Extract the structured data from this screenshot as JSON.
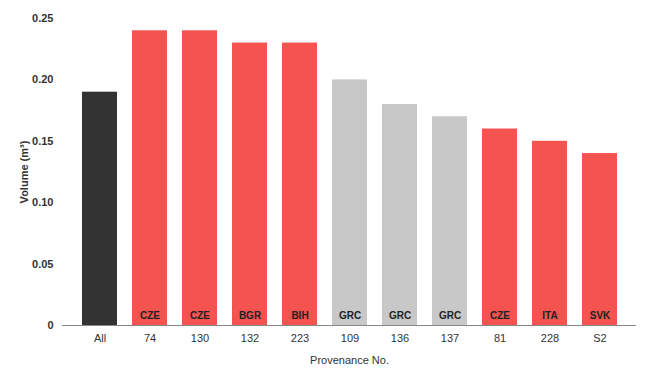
{
  "chart_data": {
    "type": "bar",
    "x_label": "Provenance No.",
    "y_label": "Volume (m³)",
    "categories": [
      "All",
      "74",
      "130",
      "132",
      "223",
      "109",
      "136",
      "137",
      "81",
      "228",
      "S2"
    ],
    "values": [
      0.19,
      0.24,
      0.24,
      0.23,
      0.23,
      0.2,
      0.18,
      0.17,
      0.16,
      0.15,
      0.14
    ],
    "annotations": [
      null,
      "CZE",
      "CZE",
      "BGR",
      "BIH",
      "GRC",
      "GRC",
      "GRC",
      "CZE",
      "ITA",
      "SVK"
    ],
    "colors": [
      "#333333",
      "#f4534f",
      "#f4534f",
      "#f4534f",
      "#f4534f",
      "#c8c8c8",
      "#c8c8c8",
      "#c8c8c8",
      "#f4534f",
      "#f4534f",
      "#f4534f"
    ],
    "ylim": [
      0,
      0.25
    ],
    "yticks": [
      0,
      0.05,
      {
        "value": 0.1,
        "label": "0.10"
      },
      0.15,
      {
        "value": 0.2,
        "label": "0.20"
      },
      0.25
    ],
    "grid": false
  }
}
